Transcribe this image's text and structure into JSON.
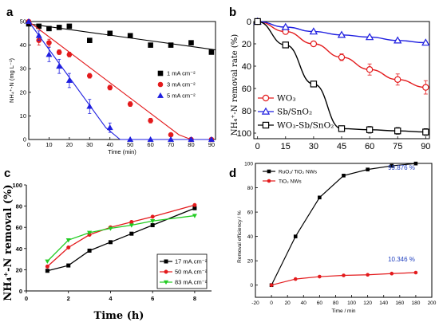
{
  "chart_data": [
    {
      "panel": "a",
      "type": "scatter",
      "ylabel": "NH₄⁺-N (mg L⁻¹)",
      "xlabel": "Time (min)",
      "xlim": [
        0,
        92
      ],
      "ylim": [
        0,
        50
      ],
      "xticks": [
        0,
        10,
        20,
        30,
        40,
        50,
        60,
        70,
        80,
        90
      ],
      "yticks": [
        0,
        10,
        20,
        30,
        40,
        50
      ],
      "legend_position": "right",
      "series": [
        {
          "name": "1 mA cm⁻²",
          "color": "#000000",
          "marker": "square",
          "x": [
            0,
            5,
            10,
            15,
            20,
            30,
            40,
            50,
            60,
            70,
            80,
            90
          ],
          "y": [
            49,
            48,
            47,
            47.5,
            48,
            42,
            45,
            44,
            40,
            40,
            41,
            37
          ],
          "err": [
            0,
            0,
            0,
            0,
            0,
            0,
            0,
            0,
            0,
            0,
            0,
            0
          ],
          "fit": [
            [
              0,
              49
            ],
            [
              92,
              38
            ]
          ]
        },
        {
          "name": "3 mA cm⁻²",
          "color": "#e31a1c",
          "marker": "circle",
          "x": [
            0,
            5,
            10,
            15,
            20,
            30,
            40,
            50,
            60,
            70,
            80,
            90
          ],
          "y": [
            50,
            42,
            41,
            37,
            36,
            27,
            22,
            15,
            8,
            2,
            0,
            0
          ],
          "err": [
            0,
            2,
            1.5,
            1,
            1,
            1,
            1,
            1,
            1,
            0.5,
            0,
            0
          ],
          "fit": [
            [
              0,
              50
            ],
            [
              74,
              2
            ],
            [
              80,
              0
            ],
            [
              90,
              0
            ]
          ]
        },
        {
          "name": "5 mA cm⁻²",
          "color": "#1f1fe0",
          "marker": "triangle",
          "x": [
            0,
            5,
            10,
            15,
            20,
            30,
            40,
            50,
            60,
            70,
            80,
            90
          ],
          "y": [
            50,
            44,
            36,
            31,
            25,
            14,
            5,
            0,
            0,
            0,
            0,
            0
          ],
          "err": [
            0,
            2,
            3,
            3,
            3,
            3,
            2,
            0,
            0,
            0,
            0,
            0
          ],
          "fit": [
            [
              0,
              50
            ],
            [
              38,
              5
            ],
            [
              45,
              0
            ],
            [
              90,
              0
            ]
          ]
        }
      ]
    },
    {
      "panel": "b",
      "type": "line",
      "ylabel": "NH₄⁺-N removal rate (%)",
      "xlabel": "",
      "xlim": [
        -2,
        92
      ],
      "ylim": [
        0,
        105
      ],
      "y_inverted": true,
      "xticks": [
        0,
        15,
        30,
        45,
        60,
        75,
        90
      ],
      "yticks": [
        0,
        20,
        40,
        60,
        80,
        100
      ],
      "legend_position": "bottom-left",
      "series": [
        {
          "name": "WO₃",
          "color": "#e31a1c",
          "marker": "circle",
          "x": [
            0,
            15,
            30,
            45,
            60,
            75,
            90
          ],
          "y": [
            0,
            9,
            20,
            32,
            43,
            52,
            59
          ],
          "err": [
            0,
            2,
            2,
            3,
            5,
            5,
            6
          ]
        },
        {
          "name": "Sb/SnO₂",
          "color": "#1f1fe0",
          "marker": "triangle",
          "x": [
            0,
            15,
            30,
            45,
            60,
            75,
            90
          ],
          "y": [
            0,
            5,
            9,
            12,
            14,
            17,
            19
          ],
          "err": [
            0,
            1,
            1,
            1,
            1,
            1,
            1
          ]
        },
        {
          "name": "WO₃-Sb/SnO₂",
          "color": "#000000",
          "marker": "square",
          "x": [
            0,
            15,
            30,
            45,
            60,
            75,
            90
          ],
          "y": [
            0,
            21,
            56,
            96,
            97,
            98,
            99
          ],
          "err": [
            0,
            2,
            2,
            2,
            3,
            3,
            3
          ]
        }
      ]
    },
    {
      "panel": "c",
      "type": "line",
      "ylabel": "NH₄⁺-N removal  (%)",
      "xlabel": "Time (h)",
      "xlim": [
        0,
        8.8
      ],
      "ylim": [
        0,
        100
      ],
      "xticks": [
        0,
        2,
        4,
        6,
        8
      ],
      "yticks": [
        0,
        20,
        40,
        60,
        80,
        100
      ],
      "legend_position": "bottom-right",
      "series": [
        {
          "name": "17 mA.cm⁻²",
          "color": "#000000",
          "marker": "square",
          "x": [
            1,
            2,
            3,
            4,
            5,
            6,
            8
          ],
          "y": [
            19,
            24,
            38,
            46,
            54,
            62,
            78
          ]
        },
        {
          "name": "50 mA.cm⁻²",
          "color": "#e31a1c",
          "marker": "circle",
          "x": [
            1,
            2,
            3,
            4,
            5,
            6,
            8
          ],
          "y": [
            23,
            41,
            53,
            60,
            65,
            70,
            81
          ]
        },
        {
          "name": "83 mA.cm⁻²",
          "color": "#22cc22",
          "marker": "triangle-down",
          "x": [
            1,
            2,
            3,
            4,
            5,
            6,
            8
          ],
          "y": [
            28,
            48,
            55,
            59,
            62,
            66,
            71
          ]
        }
      ]
    },
    {
      "panel": "d",
      "type": "line",
      "ylabel": "Removal efficiency / %",
      "xlabel": "Time / min",
      "xlim": [
        -20,
        200
      ],
      "ylim": [
        -10,
        100
      ],
      "xticks": [
        -20,
        0,
        20,
        40,
        60,
        80,
        100,
        120,
        140,
        160,
        180,
        200
      ],
      "yticks": [
        0,
        20,
        40,
        60,
        80,
        100
      ],
      "legend_position": "top-left",
      "annotations": [
        "99.876 %",
        "10.346 %"
      ],
      "series": [
        {
          "name": "RuO₂/ TiO₂ NWs",
          "color": "#000000",
          "marker": "square",
          "x": [
            0,
            30,
            60,
            90,
            120,
            150,
            180
          ],
          "y": [
            0,
            40,
            72,
            90,
            95,
            98,
            99.9
          ]
        },
        {
          "name": "TiO₂ NWs",
          "color": "#e31a1c",
          "marker": "circle",
          "x": [
            0,
            30,
            60,
            90,
            120,
            150,
            180
          ],
          "y": [
            0,
            5,
            7,
            8,
            8.5,
            9.5,
            10.3
          ]
        }
      ]
    }
  ],
  "panel_letters": [
    "a",
    "b",
    "c",
    "d"
  ]
}
